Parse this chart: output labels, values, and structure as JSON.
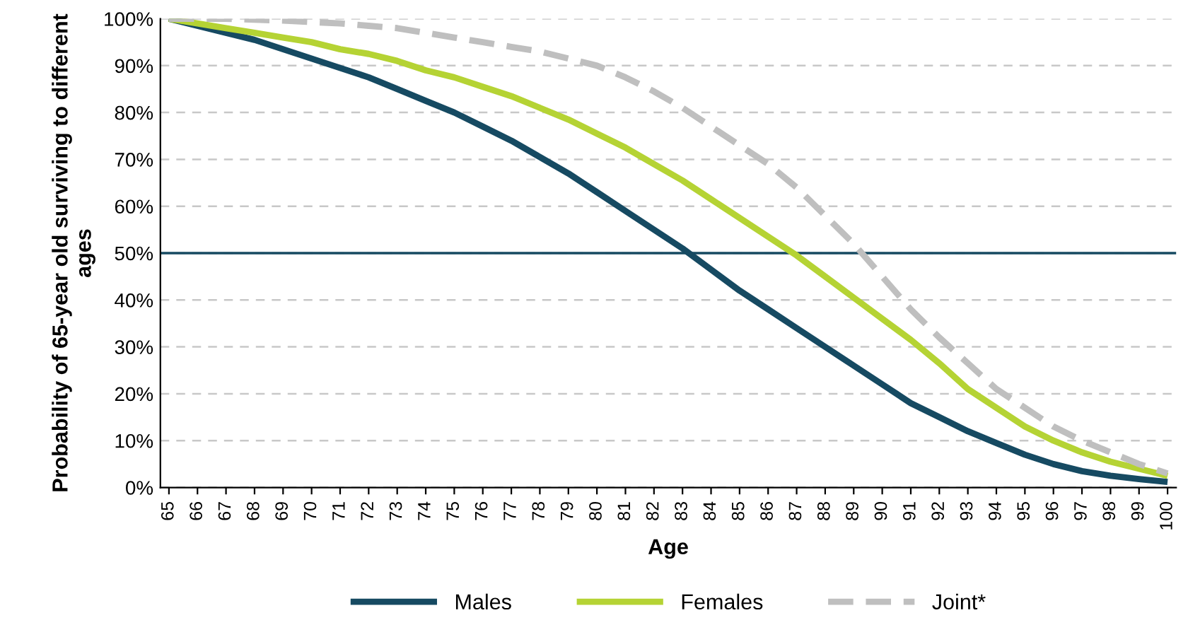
{
  "chart_data": {
    "type": "line",
    "xlabel": "Age",
    "ylabel": "Probability of 65-year old surviving to different ages",
    "categories": [
      "65",
      "66",
      "67",
      "68",
      "69",
      "70",
      "71",
      "72",
      "73",
      "74",
      "75",
      "76",
      "77",
      "78",
      "79",
      "80",
      "81",
      "82",
      "83",
      "84",
      "85",
      "86",
      "87",
      "88",
      "89",
      "90",
      "91",
      "92",
      "93",
      "94",
      "95",
      "96",
      "97",
      "98",
      "99",
      "100"
    ],
    "series": [
      {
        "name": "Males",
        "color": "#164a62",
        "line_style": "solid",
        "values": [
          100,
          98.5,
          97,
          95.5,
          93.5,
          91.5,
          89.5,
          87.5,
          85,
          82.5,
          80,
          77,
          74,
          70.5,
          67,
          63,
          59,
          55,
          51,
          46.5,
          42,
          38,
          34,
          30,
          26,
          22,
          18,
          15,
          12,
          9.5,
          7,
          5,
          3.5,
          2.5,
          1.8,
          1.2
        ]
      },
      {
        "name": "Females",
        "color": "#b5d334",
        "line_style": "solid",
        "values": [
          100,
          99,
          98,
          97,
          96,
          95,
          93.5,
          92.5,
          91,
          89,
          87.5,
          85.5,
          83.5,
          81,
          78.5,
          75.5,
          72.5,
          69,
          65.5,
          61.5,
          57.5,
          53.5,
          49.5,
          45,
          40.5,
          36,
          31.5,
          26.5,
          21,
          17,
          13,
          10,
          7.5,
          5.5,
          4,
          2.5
        ]
      },
      {
        "name": "Joint*",
        "color": "#bfbfbf",
        "line_style": "dashed",
        "values": [
          100,
          100,
          100,
          99.8,
          99.6,
          99.3,
          99,
          98.5,
          98,
          97,
          96,
          95,
          94,
          93,
          91.5,
          90,
          87.5,
          84.5,
          81,
          77,
          73,
          69,
          64,
          58,
          52,
          45,
          38,
          32,
          26.5,
          21,
          17,
          13,
          10,
          7.5,
          5,
          3
        ]
      }
    ],
    "ylim": [
      0,
      100
    ],
    "yticks": [
      {
        "value": 0,
        "label": "0%"
      },
      {
        "value": 10,
        "label": "10%"
      },
      {
        "value": 20,
        "label": "20%"
      },
      {
        "value": 30,
        "label": "30%"
      },
      {
        "value": 40,
        "label": "40%"
      },
      {
        "value": 50,
        "label": "50%"
      },
      {
        "value": 60,
        "label": "60%"
      },
      {
        "value": 70,
        "label": "70%"
      },
      {
        "value": 80,
        "label": "80%"
      },
      {
        "value": 90,
        "label": "90%"
      },
      {
        "value": 100,
        "label": "100%"
      }
    ],
    "ref_lines": [
      {
        "axis": "y",
        "value": 50,
        "label": null,
        "color": "#164a62",
        "line_style": "solid"
      }
    ],
    "grid": "y",
    "legend": "bottom",
    "marker": "none"
  }
}
